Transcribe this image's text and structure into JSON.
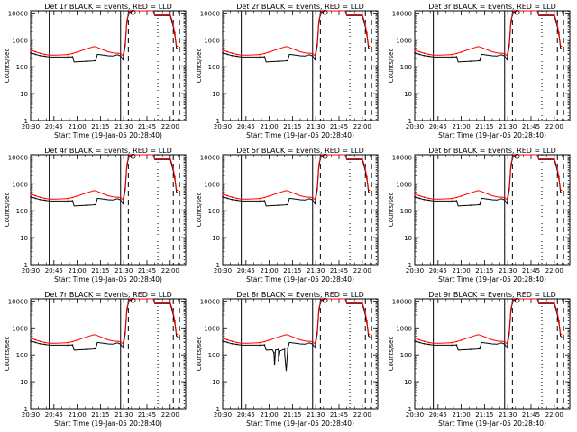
{
  "chart_data": {
    "type": "line",
    "shared": {
      "title_suffix": "BLACK = Events, RED = LLD",
      "xlabel": "Start Time (19-Jan-05 20:28:40)",
      "ylabel": "Counts/sec",
      "x_tick_labels": [
        "20:30",
        "20:45",
        "21:00",
        "21:15",
        "21:30",
        "21:45",
        "22:00"
      ],
      "x_tick_minutes": [
        0,
        15,
        30,
        45,
        60,
        75,
        90
      ],
      "xlim_minutes": [
        0,
        100
      ],
      "y_scale": "log",
      "ylim": [
        1,
        12000
      ],
      "y_tick_labels": [
        "1",
        "10",
        "100",
        "1000",
        "10000"
      ],
      "y_tick_values": [
        1,
        10,
        100,
        1000,
        10000
      ],
      "grid": false,
      "events_color": "#000000",
      "lld_color": "#ff0000",
      "event_lines": [
        {
          "minute": 12,
          "style": "solid"
        },
        {
          "minute": 58,
          "style": "solid"
        },
        {
          "minute": 63,
          "style": "dashed"
        },
        {
          "minute": 82,
          "style": "dotted"
        },
        {
          "minute": 92,
          "style": "dashed"
        },
        {
          "minute": 96,
          "style": "dashed"
        },
        {
          "minute": 99,
          "style": "dotted"
        }
      ],
      "black_series": [
        [
          0,
          330
        ],
        [
          3,
          290
        ],
        [
          6,
          260
        ],
        [
          9,
          245
        ],
        [
          12,
          230
        ],
        [
          16,
          230
        ],
        [
          20,
          230
        ],
        [
          24,
          230
        ],
        [
          27,
          235
        ],
        [
          28,
          150
        ],
        [
          32,
          155
        ],
        [
          36,
          160
        ],
        [
          40,
          165
        ],
        [
          42,
          170
        ],
        [
          43,
          290
        ],
        [
          47,
          270
        ],
        [
          50,
          255
        ],
        [
          53,
          250
        ],
        [
          56,
          280
        ],
        [
          58,
          250
        ],
        [
          59.5,
          180
        ],
        [
          61,
          600
        ],
        [
          62,
          4000
        ],
        [
          63,
          9000
        ],
        [
          64,
          11000
        ],
        [
          66,
          12000
        ],
        [
          79,
          12000
        ],
        [
          80,
          8000
        ],
        [
          90,
          8000
        ],
        [
          91,
          5000
        ],
        [
          92,
          3000
        ],
        [
          93,
          1500
        ],
        [
          94,
          500
        ],
        [
          95,
          450
        ]
      ],
      "red_series": [
        [
          0,
          420
        ],
        [
          3,
          360
        ],
        [
          6,
          320
        ],
        [
          9,
          290
        ],
        [
          12,
          270
        ],
        [
          16,
          270
        ],
        [
          20,
          275
        ],
        [
          24,
          285
        ],
        [
          27,
          310
        ],
        [
          30,
          350
        ],
        [
          34,
          420
        ],
        [
          38,
          500
        ],
        [
          41,
          560
        ],
        [
          43,
          520
        ],
        [
          47,
          420
        ],
        [
          50,
          360
        ],
        [
          53,
          330
        ],
        [
          56,
          320
        ],
        [
          58,
          310
        ],
        [
          59.5,
          260
        ],
        [
          61,
          800
        ],
        [
          62,
          5000
        ],
        [
          63,
          9500
        ],
        [
          64,
          11500
        ],
        [
          66,
          12000
        ],
        [
          79,
          12000
        ],
        [
          80,
          8500
        ],
        [
          90,
          8500
        ],
        [
          91,
          6000
        ],
        [
          92,
          3500
        ],
        [
          93,
          1800
        ],
        [
          94,
          600
        ],
        [
          95,
          550
        ]
      ]
    },
    "panels": [
      {
        "title_prefix": "Det 1r",
        "row": 0,
        "col": 0
      },
      {
        "title_prefix": "Det 2r",
        "row": 0,
        "col": 1
      },
      {
        "title_prefix": "Det 3r",
        "row": 0,
        "col": 2
      },
      {
        "title_prefix": "Det 4r",
        "row": 1,
        "col": 0
      },
      {
        "title_prefix": "Det 5r",
        "row": 1,
        "col": 1
      },
      {
        "title_prefix": "Det 6r",
        "row": 1,
        "col": 2
      },
      {
        "title_prefix": "Det 7r",
        "row": 2,
        "col": 0
      },
      {
        "title_prefix": "Det 8r",
        "row": 2,
        "col": 1,
        "has_dropouts": true
      },
      {
        "title_prefix": "Det 9r",
        "row": 2,
        "col": 2
      }
    ]
  }
}
